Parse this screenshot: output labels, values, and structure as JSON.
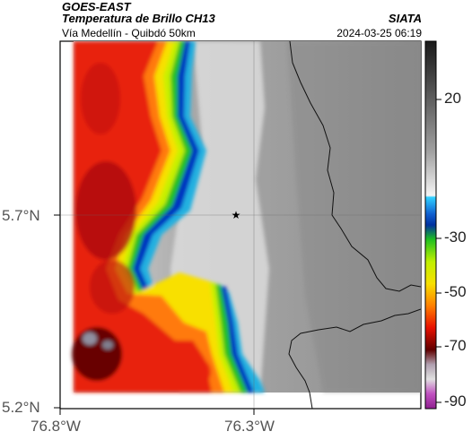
{
  "header": {
    "satellite": "GOES-EAST",
    "product": "Temperatura de Brillo CH13",
    "location": "Vía Medellín - Quibdó 50km",
    "brand": "SIATA",
    "timestamp": "2024-03-25 06:19"
  },
  "map": {
    "lat_ticks": [
      {
        "label": "5.7°N",
        "value": 5.7
      },
      {
        "label": "5.2°N",
        "value": 5.2
      }
    ],
    "lon_ticks": [
      {
        "label": "76.8°W",
        "value": -76.8
      },
      {
        "label": "76.3°W",
        "value": -76.3
      }
    ],
    "marker": {
      "symbol": "★",
      "name": "point-of-interest"
    }
  },
  "colorbar": {
    "unit": "",
    "labels": [
      "20",
      "-30",
      "-50",
      "-70",
      "-90"
    ],
    "colors": {
      "cloud_cold": "#7a0000",
      "red": "#e82010",
      "orange": "#ff6a10",
      "yellow": "#f3f000",
      "green": "#20c020",
      "blue": "#0030c0",
      "cyan": "#20b0e0",
      "gray_light": "#e8e8e8",
      "gray_dark": "#707070"
    }
  }
}
